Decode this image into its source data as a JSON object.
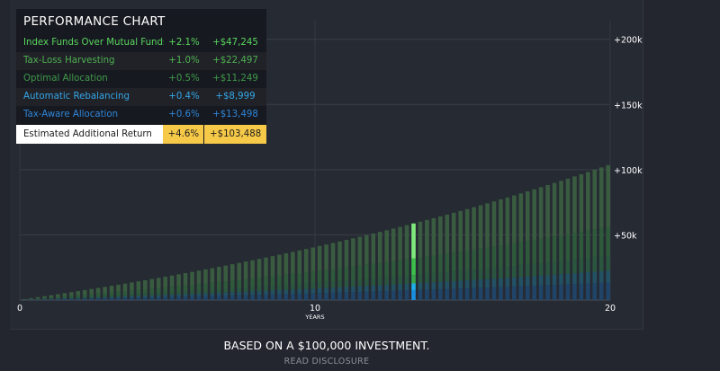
{
  "panel": {
    "title": "PERFORMANCE CHART",
    "rows": [
      {
        "label": "Index Funds Over Mutual Funds",
        "pct": "+2.1%",
        "amount": "+$47,245",
        "color": "#58d55e"
      },
      {
        "label": "Tax-Loss Harvesting",
        "pct": "+1.0%",
        "amount": "+$22,497",
        "color": "#4fb14f"
      },
      {
        "label": "Optimal Allocation",
        "pct": "+0.5%",
        "amount": "+$11,249",
        "color": "#3f9a49"
      },
      {
        "label": "Automatic Rebalancing",
        "pct": "+0.4%",
        "amount": "+$8,999",
        "color": "#35a6e6"
      },
      {
        "label": "Tax-Aware Allocation",
        "pct": "+0.6%",
        "amount": "+$13,498",
        "color": "#2f86d8"
      }
    ],
    "total": {
      "label": "Estimated Additional Return",
      "pct": "+4.6%",
      "amount": "+$103,488"
    }
  },
  "footer": {
    "main": "BASED ON A $100,000 INVESTMENT.",
    "link": "READ DISCLOSURE"
  },
  "chart_data": {
    "type": "bar",
    "stacked": true,
    "x_start": 0,
    "x_end": 20,
    "x_ticks": [
      0,
      10,
      20
    ],
    "x_tick_labels": [
      "0",
      "10",
      "20"
    ],
    "xlabel": "YEARS",
    "ylim": [
      0,
      206000
    ],
    "y_ticks": [
      50000,
      100000,
      150000,
      200000
    ],
    "y_tick_labels": [
      "+50k",
      "+100k",
      "+150k",
      "+200k"
    ],
    "grid": true,
    "highlight_x": 13.46,
    "final_values": [
      13498,
      8999,
      11249,
      22497,
      47245,
      103488
    ],
    "series": [
      {
        "name": "Tax-Aware Allocation",
        "color_dim": "#20476b",
        "color_hi": "#1a8fe0",
        "share": 0.13
      },
      {
        "name": "Automatic Rebalancing",
        "color_dim": "#225567",
        "color_hi": "#1fb0e8",
        "share": 0.087
      },
      {
        "name": "Optimal Allocation",
        "color_dim": "#2a5a40",
        "color_hi": "#37a64c",
        "share": 0.109
      },
      {
        "name": "Tax-Loss Harvesting",
        "color_dim": "#2f5e3c",
        "color_hi": "#3cbf4a",
        "share": 0.217
      },
      {
        "name": "Index Funds Over Mutual Funds",
        "color_dim": "#3b6040",
        "color_hi": "#7fe87c",
        "share": 0.457
      }
    ],
    "growth_rate": 0.046,
    "bar_count": 88
  }
}
